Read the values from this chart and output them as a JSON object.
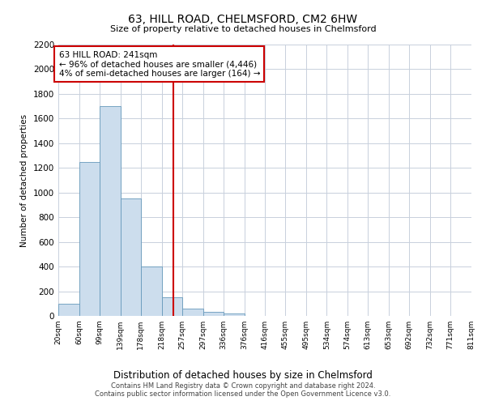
{
  "title": "63, HILL ROAD, CHELMSFORD, CM2 6HW",
  "subtitle": "Size of property relative to detached houses in Chelmsford",
  "xlabel": "Distribution of detached houses by size in Chelmsford",
  "ylabel": "Number of detached properties",
  "footer1": "Contains HM Land Registry data © Crown copyright and database right 2024.",
  "footer2": "Contains public sector information licensed under the Open Government Licence v3.0.",
  "bin_edges": [
    20,
    60,
    99,
    139,
    178,
    218,
    257,
    297,
    336,
    376,
    416,
    455,
    495,
    534,
    574,
    613,
    653,
    692,
    732,
    771,
    811
  ],
  "bar_heights": [
    100,
    1250,
    1700,
    950,
    400,
    150,
    60,
    30,
    20,
    0,
    0,
    0,
    0,
    0,
    0,
    0,
    0,
    0,
    0,
    0
  ],
  "bar_color": "#ccdded",
  "bar_edge_color": "#6699bb",
  "property_size": 241,
  "property_line_color": "#cc0000",
  "annotation_text": "63 HILL ROAD: 241sqm\n← 96% of detached houses are smaller (4,446)\n4% of semi-detached houses are larger (164) →",
  "annotation_box_color": "#ffffff",
  "annotation_box_edge": "#cc0000",
  "ylim": [
    0,
    2200
  ],
  "yticks": [
    0,
    200,
    400,
    600,
    800,
    1000,
    1200,
    1400,
    1600,
    1800,
    2000,
    2200
  ],
  "background_color": "#ffffff",
  "grid_color": "#c8d0dc"
}
